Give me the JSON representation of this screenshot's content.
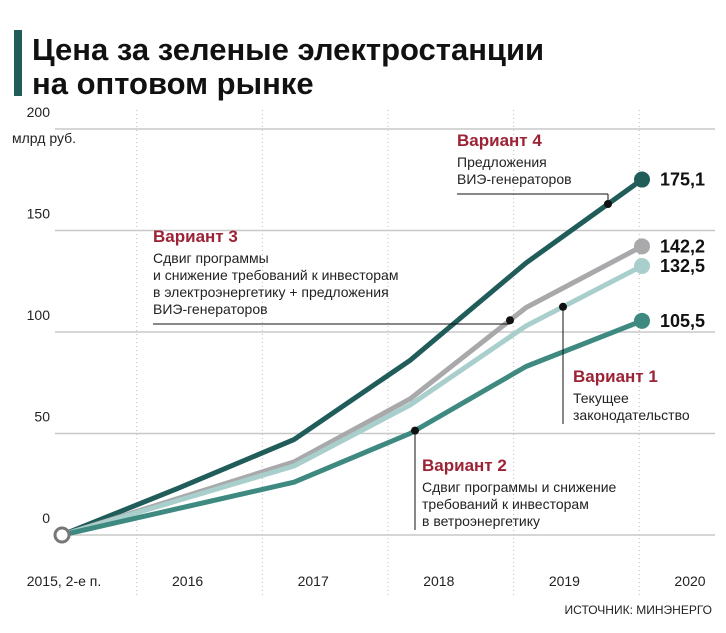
{
  "chart_data": {
    "type": "line",
    "title": [
      "Цена за зеленые электростанции",
      "на оптовом рынке"
    ],
    "y_label": "млрд руб.",
    "source": "ИСТОЧНИК: МИНЭНЕРГО",
    "categories": [
      "2015, 2-е п.",
      "2016",
      "2017",
      "2018",
      "2019",
      "2020"
    ],
    "ylim": [
      0,
      200
    ],
    "yticks": [
      0,
      50,
      100,
      150,
      200
    ],
    "grid": true,
    "series": [
      {
        "name": "Вариант 4",
        "color": "#1f5c5a",
        "description": [
          "Предложения",
          "ВИЭ-генераторов"
        ],
        "values": [
          0,
          23,
          47,
          86,
          134,
          175.1
        ],
        "value_labels": [
          null,
          null,
          null,
          null,
          null,
          "175,1"
        ]
      },
      {
        "name": "Вариант 3",
        "color": "#a9a9ab",
        "description": [
          "Сдвиг программы",
          "и снижение требований к инвесторам",
          "в электроэнергетику + предложения",
          "ВИЭ-генераторов"
        ],
        "values": [
          0,
          18,
          36,
          67,
          112,
          142.2
        ],
        "value_labels": [
          null,
          null,
          null,
          null,
          null,
          "142,2"
        ]
      },
      {
        "name": "Вариант 1",
        "color": "#a8cfcc",
        "description": [
          "Текущее",
          "законодательство"
        ],
        "values": [
          0,
          17,
          34,
          64,
          103,
          132.5
        ],
        "value_labels": [
          null,
          null,
          null,
          null,
          null,
          "132,5"
        ]
      },
      {
        "name": "Вариант 2",
        "color": "#3f8a80",
        "description": [
          "Сдвиг программы и снижение",
          "требований к инвесторам",
          "в ветроэнергетику"
        ],
        "values": [
          0,
          13,
          26,
          50,
          83,
          105.5
        ],
        "value_labels": [
          null,
          null,
          null,
          null,
          null,
          "105,5"
        ]
      }
    ]
  }
}
